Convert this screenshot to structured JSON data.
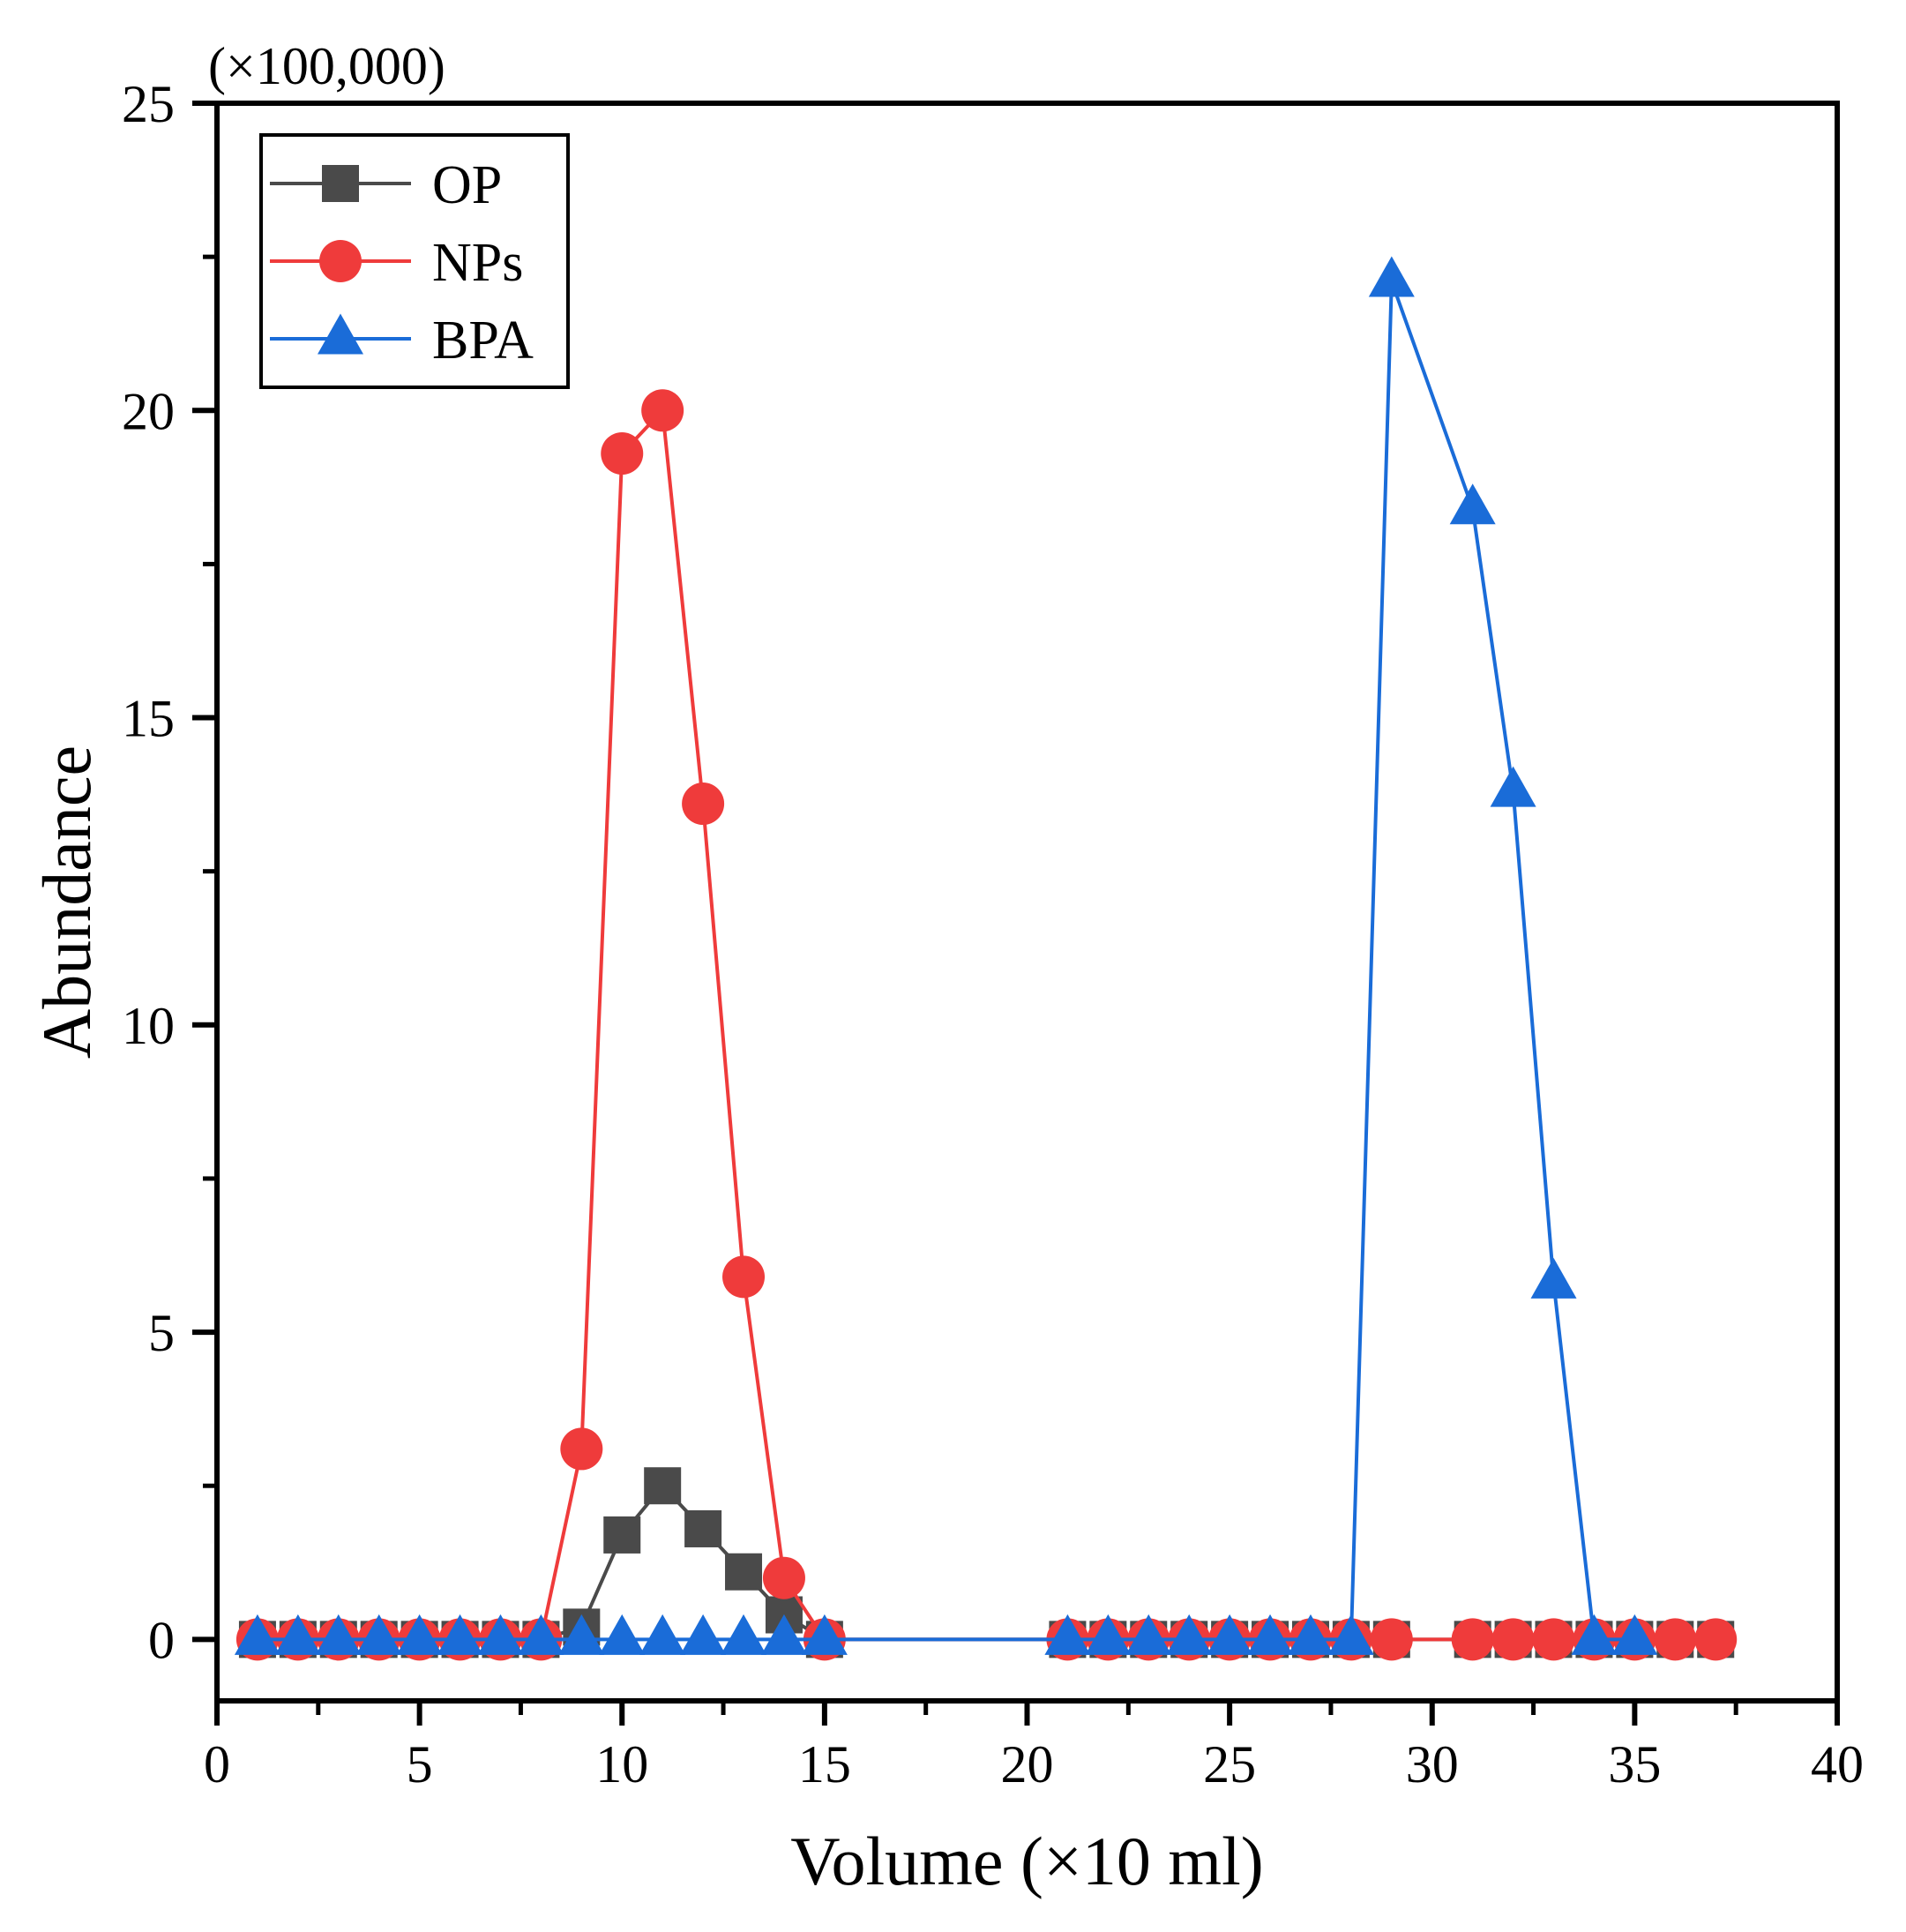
{
  "chart_data": {
    "type": "line",
    "title": "",
    "xlabel": "Volume (×10 ml)",
    "ylabel": "Abundance",
    "y_multiplier_label": "(×100,000)",
    "xlim": [
      0,
      40
    ],
    "ylim": [
      -1,
      25
    ],
    "x_ticks": [
      0,
      5,
      10,
      15,
      20,
      25,
      30,
      35,
      40
    ],
    "y_ticks": [
      0,
      5,
      10,
      15,
      20,
      25
    ],
    "grid": false,
    "legend_position": "top-left",
    "series": [
      {
        "name": "OP",
        "color": "#4a4a4a",
        "marker": "square",
        "x": [
          1,
          2,
          3,
          4,
          5,
          6,
          7,
          8,
          9,
          10,
          11,
          12,
          13,
          14,
          15,
          21,
          22,
          23,
          24,
          25,
          26,
          27,
          28,
          29,
          31,
          32,
          33,
          34,
          35,
          36,
          37
        ],
        "values": [
          0,
          0,
          0,
          0,
          0,
          0,
          0,
          0,
          0.2,
          1.7,
          2.5,
          1.8,
          1.1,
          0.4,
          0,
          0,
          0,
          0,
          0,
          0,
          0,
          0,
          0,
          0,
          0,
          0,
          0,
          0,
          0,
          0,
          0
        ]
      },
      {
        "name": "NPs",
        "color": "#ef3b3b",
        "marker": "circle",
        "x": [
          1,
          2,
          3,
          4,
          5,
          6,
          7,
          8,
          9,
          10,
          11,
          12,
          13,
          14,
          15,
          21,
          22,
          23,
          24,
          25,
          26,
          27,
          28,
          29,
          31,
          32,
          33,
          34,
          35,
          36,
          37
        ],
        "values": [
          0,
          0,
          0,
          0,
          0,
          0,
          0,
          0,
          3.1,
          19.3,
          20.0,
          13.6,
          5.9,
          1.0,
          0,
          0,
          0,
          0,
          0,
          0,
          0,
          0,
          0,
          0,
          0,
          0,
          0,
          0,
          0,
          0,
          0
        ]
      },
      {
        "name": "BPA",
        "color": "#1a6cd8",
        "marker": "triangle",
        "x": [
          1,
          2,
          3,
          4,
          5,
          6,
          7,
          8,
          9,
          10,
          11,
          12,
          13,
          14,
          15,
          21,
          22,
          23,
          24,
          25,
          26,
          27,
          28,
          29,
          31,
          32,
          33,
          34,
          35
        ],
        "values": [
          0,
          0,
          0,
          0,
          0,
          0,
          0,
          0,
          0,
          0,
          0,
          0,
          0,
          0,
          0,
          0,
          0,
          0,
          0,
          0,
          0,
          0,
          0,
          22.1,
          18.4,
          13.8,
          5.8,
          0,
          0
        ]
      }
    ]
  }
}
